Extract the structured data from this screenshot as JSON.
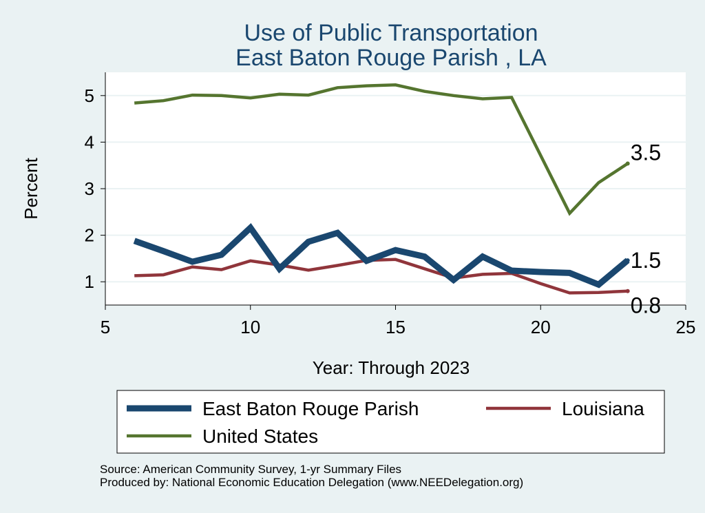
{
  "chart_data": {
    "type": "line",
    "title": "Use of Public Transportation",
    "subtitle": "East Baton Rouge Parish , LA",
    "xlabel": "Year: Through 2023",
    "ylabel": "Percent",
    "xlim": [
      5,
      25
    ],
    "ylim": [
      0.5,
      5.5
    ],
    "x_ticks": [
      5,
      10,
      15,
      20,
      25
    ],
    "y_ticks": [
      1,
      2,
      3,
      4,
      5
    ],
    "grid": true,
    "legend_position": "bottom",
    "x": [
      6,
      7,
      8,
      9,
      10,
      11,
      12,
      13,
      14,
      15,
      16,
      17,
      18,
      19,
      20,
      21,
      22,
      23
    ],
    "series": [
      {
        "name": "East Baton Rouge Parish",
        "color": "#1a476f",
        "values": [
          1.88,
          1.66,
          1.43,
          1.58,
          2.16,
          1.28,
          1.86,
          2.05,
          1.45,
          1.68,
          1.54,
          1.04,
          1.54,
          1.24,
          1.21,
          1.19,
          0.94,
          1.46
        ],
        "end_label": "1.5"
      },
      {
        "name": "Louisiana",
        "color": "#90353b",
        "values": [
          1.13,
          1.15,
          1.32,
          1.26,
          1.45,
          1.36,
          1.25,
          1.35,
          1.46,
          1.48,
          1.28,
          1.08,
          1.16,
          1.18,
          0.96,
          0.76,
          0.77,
          0.8
        ],
        "end_label": "0.8"
      },
      {
        "name": "United States",
        "color": "#55752f",
        "values": [
          4.84,
          4.89,
          5.01,
          5.0,
          4.95,
          5.03,
          5.01,
          5.17,
          5.21,
          5.23,
          5.09,
          5.0,
          4.93,
          4.96,
          null,
          2.47,
          3.13,
          3.54
        ],
        "end_label": "3.5"
      }
    ]
  },
  "source_notes": {
    "line1": "Source: American Community Survey, 1-yr Summary Files",
    "line2": "Produced by: National Economic Education Delegation (www.NEEDelegation.org)"
  }
}
